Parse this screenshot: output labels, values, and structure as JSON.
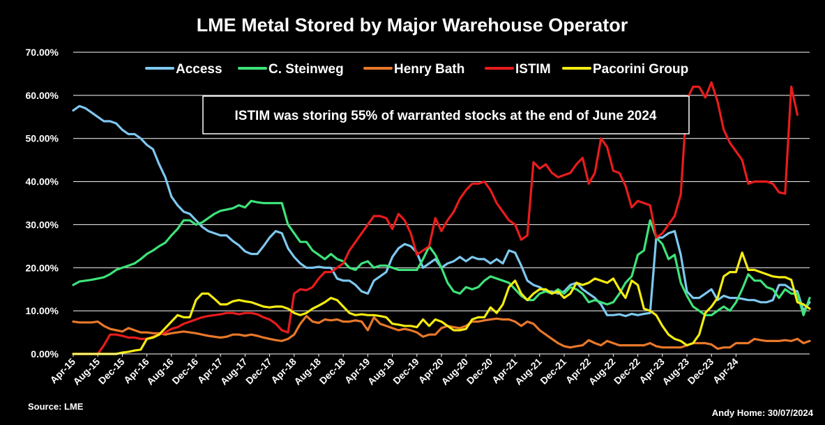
{
  "chart_data": {
    "type": "line",
    "title": "LME Metal Stored by Major Warehouse Operator",
    "xlabel": "",
    "ylabel": "",
    "x_start": "2015-04",
    "ylim": [
      0,
      0.7
    ],
    "yticks": [
      "0.00%",
      "10.00%",
      "20.00%",
      "30.00%",
      "40.00%",
      "50.00%",
      "60.00%",
      "70.00%"
    ],
    "xticks": [
      "Apr-15",
      "Aug-15",
      "Dec-15",
      "Apr-16",
      "Aug-16",
      "Dec-16",
      "Apr-17",
      "Aug-17",
      "Dec-17",
      "Apr-18",
      "Aug-18",
      "Dec-18",
      "Apr-19",
      "Aug-19",
      "Dec-19",
      "Apr-20",
      "Aug-20",
      "Dec-20",
      "Apr-21",
      "Aug-21",
      "Dec-21",
      "Apr-22",
      "Aug-22",
      "Dec-22",
      "Apr-23",
      "Aug-23",
      "Dec-23",
      "Apr-24"
    ],
    "grid": true,
    "legend_position": "top",
    "annotation": "ISTIM was storing 55% of warranted stocks at the end of June 2024",
    "series": [
      {
        "name": "Access",
        "color": "#7EC8F0",
        "values": [
          0.565,
          0.575,
          0.57,
          0.56,
          0.55,
          0.54,
          0.54,
          0.535,
          0.52,
          0.51,
          0.51,
          0.5,
          0.485,
          0.475,
          0.44,
          0.41,
          0.365,
          0.345,
          0.33,
          0.325,
          0.31,
          0.295,
          0.285,
          0.28,
          0.275,
          0.275,
          0.262,
          0.252,
          0.238,
          0.232,
          0.232,
          0.25,
          0.27,
          0.285,
          0.28,
          0.245,
          0.225,
          0.21,
          0.2,
          0.2,
          0.202,
          0.2,
          0.2,
          0.175,
          0.17,
          0.17,
          0.16,
          0.145,
          0.14,
          0.17,
          0.18,
          0.19,
          0.225,
          0.245,
          0.255,
          0.25,
          0.235,
          0.2,
          0.21,
          0.22,
          0.2,
          0.21,
          0.215,
          0.225,
          0.215,
          0.225,
          0.22,
          0.22,
          0.21,
          0.22,
          0.21,
          0.24,
          0.235,
          0.205,
          0.17,
          0.16,
          0.155,
          0.145,
          0.145,
          0.14,
          0.145,
          0.16,
          0.165,
          0.15,
          0.14,
          0.13,
          0.115,
          0.09,
          0.09,
          0.092,
          0.088,
          0.093,
          0.09,
          0.093,
          0.095,
          0.27,
          0.27,
          0.28,
          0.285,
          0.23,
          0.145,
          0.13,
          0.13,
          0.14,
          0.15,
          0.125,
          0.135,
          0.13,
          0.13,
          0.128,
          0.125,
          0.125,
          0.12,
          0.12,
          0.125,
          0.16,
          0.16,
          0.15,
          0.145,
          0.1,
          0.12
        ]
      },
      {
        "name": "C. Steinweg",
        "color": "#3EE37A",
        "values": [
          0.16,
          0.168,
          0.17,
          0.172,
          0.175,
          0.178,
          0.185,
          0.195,
          0.2,
          0.205,
          0.21,
          0.22,
          0.232,
          0.24,
          0.25,
          0.258,
          0.275,
          0.29,
          0.31,
          0.31,
          0.3,
          0.305,
          0.315,
          0.325,
          0.332,
          0.335,
          0.338,
          0.345,
          0.34,
          0.355,
          0.352,
          0.35,
          0.35,
          0.35,
          0.35,
          0.3,
          0.28,
          0.26,
          0.26,
          0.24,
          0.23,
          0.22,
          0.232,
          0.22,
          0.215,
          0.2,
          0.195,
          0.21,
          0.215,
          0.2,
          0.205,
          0.205,
          0.2,
          0.195,
          0.195,
          0.195,
          0.195,
          0.22,
          0.25,
          0.23,
          0.2,
          0.165,
          0.145,
          0.14,
          0.155,
          0.15,
          0.155,
          0.17,
          0.18,
          0.175,
          0.17,
          0.165,
          0.15,
          0.135,
          0.125,
          0.125,
          0.14,
          0.145,
          0.14,
          0.15,
          0.14,
          0.155,
          0.15,
          0.14,
          0.12,
          0.125,
          0.12,
          0.115,
          0.12,
          0.14,
          0.165,
          0.18,
          0.23,
          0.24,
          0.31,
          0.27,
          0.255,
          0.22,
          0.23,
          0.165,
          0.135,
          0.11,
          0.1,
          0.09,
          0.09,
          0.1,
          0.11,
          0.1,
          0.12,
          0.15,
          0.185,
          0.17,
          0.17,
          0.155,
          0.15,
          0.13,
          0.15,
          0.14,
          0.14,
          0.09,
          0.13
        ]
      },
      {
        "name": "Henry Bath",
        "color": "#E8782A",
        "values": [
          0.075,
          0.073,
          0.073,
          0.073,
          0.075,
          0.065,
          0.058,
          0.055,
          0.052,
          0.06,
          0.055,
          0.05,
          0.05,
          0.048,
          0.048,
          0.045,
          0.048,
          0.05,
          0.052,
          0.05,
          0.048,
          0.045,
          0.042,
          0.04,
          0.038,
          0.04,
          0.045,
          0.045,
          0.042,
          0.045,
          0.042,
          0.038,
          0.035,
          0.032,
          0.03,
          0.035,
          0.045,
          0.07,
          0.088,
          0.075,
          0.072,
          0.08,
          0.078,
          0.08,
          0.075,
          0.075,
          0.078,
          0.075,
          0.055,
          0.085,
          0.07,
          0.065,
          0.06,
          0.055,
          0.058,
          0.055,
          0.05,
          0.04,
          0.045,
          0.045,
          0.06,
          0.065,
          0.062,
          0.06,
          0.065,
          0.075,
          0.075,
          0.078,
          0.08,
          0.082,
          0.08,
          0.08,
          0.075,
          0.065,
          0.075,
          0.07,
          0.055,
          0.045,
          0.035,
          0.025,
          0.018,
          0.015,
          0.018,
          0.02,
          0.032,
          0.025,
          0.02,
          0.03,
          0.025,
          0.02,
          0.02,
          0.02,
          0.02,
          0.02,
          0.025,
          0.018,
          0.015,
          0.015,
          0.015,
          0.015,
          0.02,
          0.025,
          0.025,
          0.025,
          0.022,
          0.012,
          0.015,
          0.015,
          0.025,
          0.025,
          0.025,
          0.035,
          0.032,
          0.03,
          0.03,
          0.03,
          0.032,
          0.03,
          0.035,
          0.025,
          0.03
        ]
      },
      {
        "name": "ISTIM",
        "color": "#E81C1C",
        "values": [
          0,
          0,
          0,
          0,
          0,
          0.02,
          0.045,
          0.045,
          0.042,
          0.038,
          0.038,
          0.035,
          0.035,
          0.04,
          0.045,
          0.05,
          0.058,
          0.062,
          0.07,
          0.075,
          0.08,
          0.085,
          0.088,
          0.09,
          0.092,
          0.095,
          0.095,
          0.092,
          0.095,
          0.095,
          0.092,
          0.085,
          0.08,
          0.07,
          0.055,
          0.05,
          0.14,
          0.15,
          0.148,
          0.155,
          0.175,
          0.19,
          0.19,
          0.2,
          0.21,
          0.24,
          0.26,
          0.28,
          0.3,
          0.32,
          0.32,
          0.315,
          0.29,
          0.325,
          0.31,
          0.28,
          0.23,
          0.24,
          0.25,
          0.315,
          0.285,
          0.31,
          0.33,
          0.36,
          0.38,
          0.395,
          0.395,
          0.4,
          0.38,
          0.35,
          0.33,
          0.31,
          0.3,
          0.265,
          0.275,
          0.445,
          0.43,
          0.44,
          0.42,
          0.41,
          0.415,
          0.42,
          0.44,
          0.455,
          0.395,
          0.42,
          0.5,
          0.48,
          0.425,
          0.42,
          0.39,
          0.34,
          0.355,
          0.35,
          0.345,
          0.27,
          0.28,
          0.3,
          0.32,
          0.37,
          0.59,
          0.62,
          0.62,
          0.595,
          0.63,
          0.585,
          0.52,
          0.49,
          0.47,
          0.45,
          0.395,
          0.4,
          0.4,
          0.4,
          0.395,
          0.375,
          0.372,
          0.62,
          0.555
        ]
      },
      {
        "name": "Pacorini Group",
        "color": "#F5EC10",
        "values": [
          0,
          0,
          0,
          0,
          0,
          0,
          0,
          0,
          0.003,
          0.005,
          0.008,
          0.01,
          0.035,
          0.038,
          0.045,
          0.06,
          0.075,
          0.09,
          0.085,
          0.085,
          0.125,
          0.14,
          0.14,
          0.128,
          0.115,
          0.115,
          0.122,
          0.125,
          0.122,
          0.12,
          0.115,
          0.11,
          0.108,
          0.11,
          0.11,
          0.105,
          0.095,
          0.09,
          0.095,
          0.105,
          0.112,
          0.12,
          0.13,
          0.125,
          0.11,
          0.095,
          0.09,
          0.092,
          0.09,
          0.09,
          0.088,
          0.085,
          0.07,
          0.068,
          0.065,
          0.065,
          0.062,
          0.08,
          0.065,
          0.08,
          0.075,
          0.065,
          0.055,
          0.055,
          0.058,
          0.08,
          0.085,
          0.085,
          0.108,
          0.095,
          0.115,
          0.155,
          0.17,
          0.14,
          0.125,
          0.14,
          0.15,
          0.15,
          0.14,
          0.145,
          0.13,
          0.14,
          0.165,
          0.16,
          0.165,
          0.175,
          0.17,
          0.165,
          0.175,
          0.15,
          0.13,
          0.17,
          0.16,
          0.105,
          0.1,
          0.09,
          0.065,
          0.045,
          0.035,
          0.03,
          0.02,
          0.025,
          0.045,
          0.095,
          0.11,
          0.13,
          0.18,
          0.19,
          0.19,
          0.235,
          0.195,
          0.195,
          0.19,
          0.185,
          0.18,
          0.178,
          0.178,
          0.172,
          0.12,
          0.115,
          0.105
        ]
      }
    ]
  },
  "source_label": "Source: LME",
  "credit_label": "Andy Home: 30/07/2024"
}
